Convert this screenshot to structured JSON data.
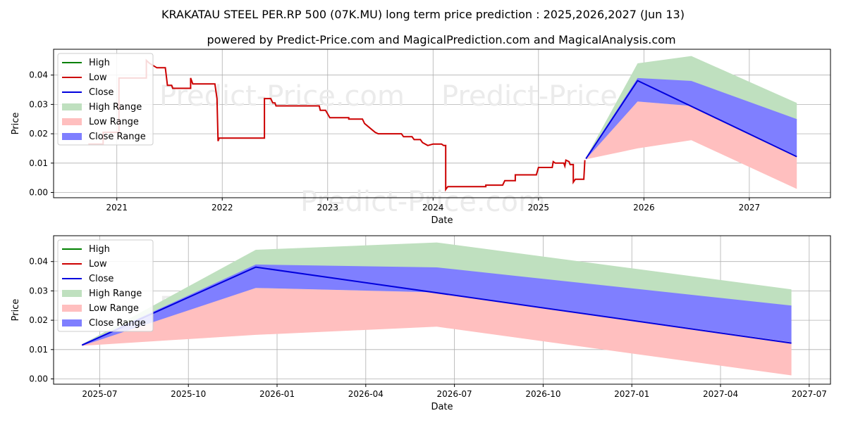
{
  "title": "KRAKATAU STEEL PER.RP 500 (07K.MU) long term price prediction : 2025,2026,2027 (Jun 13)",
  "subtitle": "powered by Predict-Price.com and MagicalPrediction.com and MagicalAnalysis.com",
  "watermark": "Predict-Price.com",
  "colors": {
    "high": "#008000",
    "low": "#cc0000",
    "close": "#0000dd",
    "high_range": "#bfe0bf",
    "low_range": "#ffbfbf",
    "close_range": "#7f7fff",
    "grid": "#b0b0b0",
    "watermark": "#ebebeb"
  },
  "legend": {
    "items": [
      {
        "label": "High",
        "kind": "line",
        "color_key": "high"
      },
      {
        "label": "Low",
        "kind": "line",
        "color_key": "low"
      },
      {
        "label": "Close",
        "kind": "line",
        "color_key": "close"
      },
      {
        "label": "High Range",
        "kind": "patch",
        "color_key": "high_range"
      },
      {
        "label": "Low Range",
        "kind": "patch",
        "color_key": "low_range"
      },
      {
        "label": "Close Range",
        "kind": "patch",
        "color_key": "close_range"
      }
    ]
  },
  "chart_data": [
    {
      "type": "line",
      "name": "history-and-forecast",
      "xlabel": "Date",
      "ylabel": "Price",
      "xlim": [
        2020.4,
        2027.77
      ],
      "ylim": [
        -0.0018,
        0.0488
      ],
      "x_ticks": [
        {
          "v": 2021,
          "label": "2021"
        },
        {
          "v": 2022,
          "label": "2022"
        },
        {
          "v": 2023,
          "label": "2023"
        },
        {
          "v": 2024,
          "label": "2024"
        },
        {
          "v": 2025,
          "label": "2025"
        },
        {
          "v": 2026,
          "label": "2026"
        },
        {
          "v": 2027,
          "label": "2027"
        }
      ],
      "y_ticks": [
        {
          "v": 0.0,
          "label": "0.00"
        },
        {
          "v": 0.01,
          "label": "0.01"
        },
        {
          "v": 0.02,
          "label": "0.02"
        },
        {
          "v": 0.03,
          "label": "0.03"
        },
        {
          "v": 0.04,
          "label": "0.04"
        }
      ],
      "history_low": [
        [
          2020.73,
          0.0165
        ],
        [
          2020.87,
          0.0165
        ],
        [
          2020.87,
          0.0205
        ],
        [
          2021.02,
          0.0205
        ],
        [
          2021.02,
          0.039
        ],
        [
          2021.28,
          0.039
        ],
        [
          2021.28,
          0.045
        ],
        [
          2021.31,
          0.044
        ],
        [
          2021.38,
          0.0425
        ],
        [
          2021.46,
          0.0425
        ],
        [
          2021.48,
          0.0365
        ],
        [
          2021.52,
          0.0365
        ],
        [
          2021.53,
          0.0355
        ],
        [
          2021.7,
          0.0355
        ],
        [
          2021.7,
          0.039
        ],
        [
          2021.72,
          0.037
        ],
        [
          2021.93,
          0.037
        ],
        [
          2021.95,
          0.032
        ],
        [
          2021.96,
          0.0175
        ],
        [
          2021.97,
          0.0185
        ],
        [
          2022.4,
          0.0185
        ],
        [
          2022.4,
          0.032
        ],
        [
          2022.46,
          0.032
        ],
        [
          2022.48,
          0.0305
        ],
        [
          2022.5,
          0.0305
        ],
        [
          2022.51,
          0.0295
        ],
        [
          2022.92,
          0.0295
        ],
        [
          2022.93,
          0.028
        ],
        [
          2022.98,
          0.028
        ],
        [
          2023.02,
          0.0255
        ],
        [
          2023.2,
          0.0255
        ],
        [
          2023.2,
          0.025
        ],
        [
          2023.33,
          0.025
        ],
        [
          2023.35,
          0.0235
        ],
        [
          2023.4,
          0.022
        ],
        [
          2023.45,
          0.0205
        ],
        [
          2023.48,
          0.02
        ],
        [
          2023.7,
          0.02
        ],
        [
          2023.72,
          0.019
        ],
        [
          2023.8,
          0.019
        ],
        [
          2023.82,
          0.018
        ],
        [
          2023.88,
          0.018
        ],
        [
          2023.9,
          0.017
        ],
        [
          2023.95,
          0.016
        ],
        [
          2024.0,
          0.0165
        ],
        [
          2024.08,
          0.0165
        ],
        [
          2024.1,
          0.016
        ],
        [
          2024.12,
          0.016
        ],
        [
          2024.12,
          0.001
        ],
        [
          2024.14,
          0.002
        ],
        [
          2024.5,
          0.002
        ],
        [
          2024.5,
          0.0025
        ],
        [
          2024.66,
          0.0025
        ],
        [
          2024.68,
          0.004
        ],
        [
          2024.78,
          0.004
        ],
        [
          2024.78,
          0.006
        ],
        [
          2024.98,
          0.006
        ],
        [
          2025.0,
          0.0085
        ],
        [
          2025.13,
          0.0085
        ],
        [
          2025.14,
          0.0105
        ],
        [
          2025.16,
          0.01
        ],
        [
          2025.24,
          0.01
        ],
        [
          2025.25,
          0.009
        ],
        [
          2025.26,
          0.011
        ],
        [
          2025.29,
          0.0105
        ],
        [
          2025.3,
          0.0095
        ],
        [
          2025.33,
          0.0095
        ],
        [
          2025.33,
          0.0035
        ],
        [
          2025.35,
          0.0045
        ],
        [
          2025.43,
          0.0045
        ],
        [
          2025.44,
          0.011
        ]
      ],
      "high_range": {
        "x": [
          2025.45,
          2025.94,
          2026.45,
          2027.45
        ],
        "upper": [
          0.0118,
          0.044,
          0.0465,
          0.0305
        ],
        "lower": [
          0.0113,
          0.031,
          0.0295,
          0.0245
        ]
      },
      "close_range": {
        "x": [
          2025.45,
          2025.94,
          2026.45,
          2027.45
        ],
        "upper": [
          0.0118,
          0.039,
          0.038,
          0.025
        ],
        "lower": [
          0.0113,
          0.031,
          0.0295,
          0.0125
        ]
      },
      "low_range": {
        "x": [
          2025.45,
          2025.94,
          2026.45,
          2027.45
        ],
        "upper": [
          0.0118,
          0.031,
          0.0295,
          0.0125
        ],
        "lower": [
          0.0113,
          0.015,
          0.0178,
          0.0012
        ]
      },
      "close_line": {
        "x": [
          2025.45,
          2025.94,
          2027.45
        ],
        "y": [
          0.0115,
          0.0381,
          0.0122
        ]
      }
    },
    {
      "type": "line",
      "name": "forecast-zoom",
      "xlabel": "Date",
      "ylabel": "Price",
      "xlim": [
        2025.37,
        2027.56
      ],
      "ylim": [
        -0.0018,
        0.0488
      ],
      "x_ticks": [
        {
          "v": 2025.5,
          "label": "2025-07"
        },
        {
          "v": 2025.75,
          "label": "2025-10"
        },
        {
          "v": 2026.0,
          "label": "2026-01"
        },
        {
          "v": 2026.25,
          "label": "2026-04"
        },
        {
          "v": 2026.5,
          "label": "2026-07"
        },
        {
          "v": 2026.75,
          "label": "2026-10"
        },
        {
          "v": 2027.0,
          "label": "2027-01"
        },
        {
          "v": 2027.25,
          "label": "2027-04"
        },
        {
          "v": 2027.5,
          "label": "2027-07"
        }
      ],
      "y_ticks": [
        {
          "v": 0.0,
          "label": "0.00"
        },
        {
          "v": 0.01,
          "label": "0.01"
        },
        {
          "v": 0.02,
          "label": "0.02"
        },
        {
          "v": 0.03,
          "label": "0.03"
        },
        {
          "v": 0.04,
          "label": "0.04"
        }
      ],
      "high_range": {
        "x": [
          2025.45,
          2025.94,
          2026.45,
          2027.45
        ],
        "upper": [
          0.0118,
          0.044,
          0.0465,
          0.0305
        ],
        "lower": [
          0.0113,
          0.031,
          0.0295,
          0.0245
        ]
      },
      "close_range": {
        "x": [
          2025.45,
          2025.94,
          2026.45,
          2027.45
        ],
        "upper": [
          0.0118,
          0.039,
          0.038,
          0.025
        ],
        "lower": [
          0.0113,
          0.031,
          0.0295,
          0.0125
        ]
      },
      "low_range": {
        "x": [
          2025.45,
          2025.94,
          2026.45,
          2027.45
        ],
        "upper": [
          0.0118,
          0.031,
          0.0295,
          0.0125
        ],
        "lower": [
          0.0113,
          0.015,
          0.0178,
          0.0012
        ]
      },
      "close_line": {
        "x": [
          2025.45,
          2025.94,
          2027.45
        ],
        "y": [
          0.0115,
          0.0381,
          0.0122
        ]
      }
    }
  ]
}
